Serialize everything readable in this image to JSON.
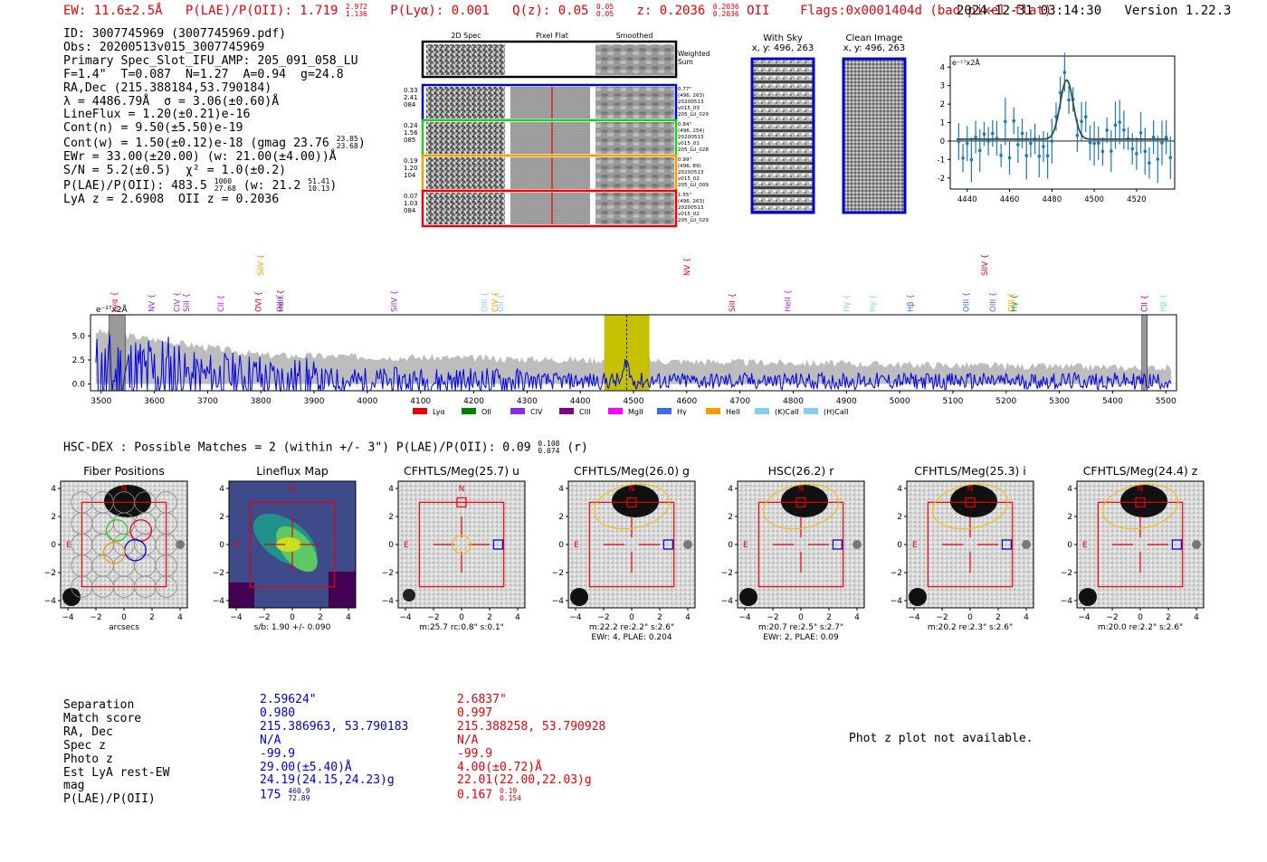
{
  "header": {
    "ew": "EW: 11.6±2.5Å",
    "plae_label": "P(LAE)/P(OII): 1.719",
    "plae_hi": "2.972",
    "plae_lo": "1.136",
    "plya": "P(Lyα): 0.001",
    "qz_label": "Q(z): 0.05",
    "qz_hi": "0.05",
    "qz_lo": "0.05",
    "z_label": "z: 0.2036",
    "z_hi": "0.2036",
    "z_lo": "0.2036",
    "z_line": "OII",
    "flags": "Flags:0x0001404d  (bad pixel flat)",
    "timestamp": "2024-12-31 03:14:30",
    "version": "Version 1.22.3"
  },
  "info": {
    "id": "ID: 3007745969 (3007745969.pdf)",
    "obs": "Obs: 20200513v015_3007745969",
    "primary": "Primary Spec_Slot_IFU_AMP: 205_091_058_LU",
    "fit": "F=1.4\"  T=0.087  N=1.27  A=0.94  g=24.8",
    "radec": "RA,Dec (215.388184,53.790184)",
    "lambda": "λ = 4486.79Å  σ = 3.06(±0.60)Å",
    "lineflux": "LineFlux = 1.20(±0.21)e-16",
    "contn": "Cont(n) = 9.50(±5.50)e-19",
    "contw": "Cont(w) = 1.50(±0.12)e-18 (gmag 23.76",
    "contw_hi": "23.85",
    "contw_lo": "23.68",
    "ewr": "EWr = 33.00(±20.00) (w: 21.00(±4.00))Å",
    "sn": "S/N = 5.2(±0.5)  χ² = 1.0(±0.2)",
    "plae": "P(LAE)/P(OII): 483.5",
    "plae_hi": "1000",
    "plae_lo": "27.68",
    "plae_w": "(w: 21.2",
    "plae_w_hi": "51.41",
    "plae_w_lo": "10.13",
    "lyaz": "LyA z = 2.6908  OII z = 0.2036"
  },
  "stamps": {
    "col_2d": "2D Spec",
    "col_flat": "Pixel Flat",
    "col_smooth": "Smoothed",
    "weighted": "Weighted\nSum",
    "rows": [
      {
        "left": "0.33\n2.41\n084",
        "right": "0.77\"\n(496, 263)\n20200513\nv015_03\n205_LU_029",
        "color": "#0000d0"
      },
      {
        "left": "0.24\n1.56\n085",
        "right": "0.84\"\n(496, 254)\n20200513\nv015_01\n205_LU_028",
        "color": "#22cc22"
      },
      {
        "left": "0.19\n1.20\n104",
        "right": "0.99\"\n(496, 89)\n20200513\nv015_02\n205_LU_009",
        "color": "#ff9900"
      },
      {
        "left": "0.07\n1.03\n084",
        "right": "1.55\"\n(496, 263)\n20200513\nv015_02\n205_LU_029",
        "color": "#e8000b"
      }
    ],
    "with_sky": "With Sky",
    "with_sky_xy": "x, y: 496, 263",
    "clean": "Clean Image",
    "clean_xy": "x, y: 496, 263"
  },
  "line_fit": {
    "ylabel": "e⁻¹⁷x2Å",
    "xticks": [
      "4440",
      "4460",
      "4480",
      "4500",
      "4520"
    ],
    "yticks": [
      "4",
      "3",
      "2",
      "1",
      "0",
      "-1",
      "-2"
    ],
    "xlim": [
      4432,
      4538
    ],
    "ylim": [
      -2.6,
      4.6
    ]
  },
  "chart_data": {
    "type": "line",
    "title": "",
    "ylabel": "e⁻¹⁷x2Å",
    "xlim": [
      3480,
      5520
    ],
    "ylim": [
      -0.7,
      7.2
    ],
    "xticks": [
      "3500",
      "3600",
      "3700",
      "3800",
      "3900",
      "4000",
      "4100",
      "4200",
      "4300",
      "4400",
      "4500",
      "4600",
      "4700",
      "4800",
      "4900",
      "5000",
      "5100",
      "5200",
      "5300",
      "5400",
      "5500"
    ],
    "yticks": [
      "5.0",
      "2.5",
      "0.0"
    ],
    "highlight_band": [
      4445,
      4530
    ],
    "line_marker": 4487,
    "masked_regions": [
      [
        3515,
        3545
      ],
      [
        5455,
        5465
      ]
    ],
    "legend": [
      "Lyα",
      "OII",
      "CIV",
      "CIII",
      "MgII",
      "Hγ",
      "HeII",
      "(K)CaII",
      "(H)CaII"
    ],
    "legend_colors": [
      "#e8000b",
      "#008000",
      "#8a2be2",
      "#800080",
      "#ff00ff",
      "#4169e1",
      "#ff9900",
      "#87ceeb",
      "#87ceeb"
    ],
    "line_labels": [
      {
        "x": 3525,
        "label": "Lyα",
        "color": "#e8000b"
      },
      {
        "x": 3595,
        "label": "NV",
        "color": "#8a2be2"
      },
      {
        "x": 3642,
        "label": "CIV",
        "color": "#8a2be2"
      },
      {
        "x": 3660,
        "label": "SiII",
        "color": "#8a2be2"
      },
      {
        "x": 3725,
        "label": "CII",
        "color": "#ff00ff"
      },
      {
        "x": 3795,
        "label": "OVI",
        "color": "#e8000b"
      },
      {
        "x": 3800,
        "label": "SiIV",
        "color": "#ff9900"
      },
      {
        "x": 3835,
        "label": "OII",
        "color": "#4169e1"
      },
      {
        "x": 3837,
        "label": "HeII",
        "color": "#800080"
      },
      {
        "x": 4050,
        "label": "SiIV",
        "color": "#8a2be2"
      },
      {
        "x": 4220,
        "label": "OIII",
        "color": "#87ceeb"
      },
      {
        "x": 4240,
        "label": "CIV",
        "color": "#ff9900"
      },
      {
        "x": 4250,
        "label": "OII",
        "color": "#87ceeb"
      },
      {
        "x": 4600,
        "label": "NV",
        "color": "#e8000b"
      },
      {
        "x": 4685,
        "label": "SiII",
        "color": "#e8000b"
      },
      {
        "x": 4790,
        "label": "HeII",
        "color": "#8a2be2"
      },
      {
        "x": 4900,
        "label": "Hγ",
        "color": "#87ceeb"
      },
      {
        "x": 4950,
        "label": "Hγ",
        "color": "#87ceeb"
      },
      {
        "x": 5020,
        "label": "Hβ",
        "color": "#4169e1"
      },
      {
        "x": 5125,
        "label": "OIII",
        "color": "#4169e1"
      },
      {
        "x": 5160,
        "label": "SiIV",
        "color": "#e8000b"
      },
      {
        "x": 5175,
        "label": "OIII",
        "color": "#4169e1"
      },
      {
        "x": 5210,
        "label": "CIII",
        "color": "#ff9900"
      },
      {
        "x": 5215,
        "label": "Hγ",
        "color": "#008000"
      },
      {
        "x": 5460,
        "label": "CII",
        "color": "#800080"
      },
      {
        "x": 5495,
        "label": "Hβ",
        "color": "#87ceeb"
      }
    ]
  },
  "hsc": {
    "heading": "HSC-DEX : Possible Matches = 2 (within +/- 3\")  P(LAE)/P(OII): 0.09",
    "plae_hi": "0.108",
    "plae_lo": "0.074",
    "band": "(r)",
    "panels": [
      {
        "title": "Fiber Positions",
        "caption1": "arcsecs",
        "caption2": ""
      },
      {
        "title": "Lineflux Map",
        "caption1": "s/b: 1.90 +/- 0.090",
        "caption2": ""
      },
      {
        "title": "CFHTLS/Meg(25.7) u",
        "caption1": "m:25.7 rc:0.8\"  s:0.1\"",
        "caption2": ""
      },
      {
        "title": "CFHTLS/Meg(26.0) g",
        "caption1": "m:22.2  re:2.2\"  s:2.6\"",
        "caption2": "EWr: 4, PLAE: 0.204"
      },
      {
        "title": "HSC(26.2) r",
        "caption1": "m:20.7  re:2.5\"  s:2.7\"",
        "caption2": "EWr: 2, PLAE: 0.09"
      },
      {
        "title": "CFHTLS/Meg(25.3) i",
        "caption1": "m:20.2  re:2.3\"  s:2.6\"",
        "caption2": ""
      },
      {
        "title": "CFHTLS/Meg(24.4) z",
        "caption1": "m:20.0  re:2.2\"  s:2.6\"",
        "caption2": ""
      }
    ],
    "ticks_y": [
      "4",
      "2",
      "0",
      "−2",
      "−4"
    ],
    "ticks_x": [
      "−4",
      "−2",
      "0",
      "2",
      "4"
    ]
  },
  "matches": {
    "labels": [
      "Separation",
      "Match score",
      "RA, Dec",
      "Spec z",
      "Photo z",
      "Est LyA rest-EW",
      "mag",
      "P(LAE)/P(OII)"
    ],
    "col1": [
      "2.59624\"",
      "0.980",
      "215.386963, 53.790183",
      "N/A",
      "-99.9",
      "29.00(±5.40)Å",
      "24.19(24.15,24.23)g",
      "175"
    ],
    "col1_plae_hi": "460.9",
    "col1_plae_lo": "72.89",
    "col2": [
      "2.6837\"",
      "0.997",
      "215.388258, 53.790928",
      "N/A",
      "-99.9",
      "4.00(±0.72)Å",
      "22.01(22.00,22.03)g",
      "0.167"
    ],
    "col2_plae_hi": "0.19",
    "col2_plae_lo": "0.154",
    "photz_note": "Phot z plot not available."
  }
}
